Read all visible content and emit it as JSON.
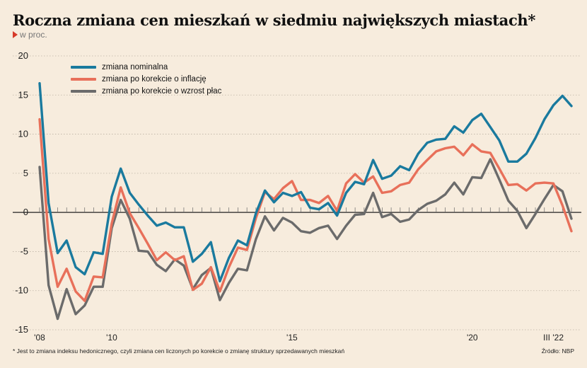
{
  "title": "Roczna zmiana cen mieszkań w siedmiu największych miastach*",
  "subtitle": "w proc.",
  "footnote": "* Jest to zmiana indeksu hedonicznego, czyli zmiana cen liczonych po korekcie o zmianę struktury sprzedawanych mieszkań",
  "source": "Źródło: NBP",
  "colors": {
    "nominal": "#1a7a9e",
    "inflation": "#e8705a",
    "wages": "#6b6b6b",
    "background": "#f7ecdd",
    "accent": "#d63a2a"
  },
  "chart_data": {
    "type": "line",
    "ylim": [
      -15,
      20
    ],
    "yticks": [
      20,
      15,
      10,
      5,
      0,
      -5,
      -10,
      -15
    ],
    "xticks": [
      {
        "label": "'08",
        "x": 0
      },
      {
        "label": "'10",
        "x": 8
      },
      {
        "label": "'15",
        "x": 28
      },
      {
        "label": "'20",
        "x": 48
      },
      {
        "label": "III '22",
        "x": 57
      }
    ],
    "grid": true,
    "legend_position": "top-left",
    "series": [
      {
        "name": "zmiana nominalna",
        "color": "#1a7a9e",
        "values": [
          16.5,
          1.2,
          -5.2,
          -3.6,
          -7.0,
          -7.9,
          -5.1,
          -5.3,
          2.0,
          5.6,
          2.5,
          1.0,
          -0.4,
          -1.7,
          -1.3,
          -1.9,
          -1.9,
          -6.3,
          -5.3,
          -3.8,
          -8.8,
          -5.8,
          -3.6,
          -4.2,
          -0.1,
          2.8,
          1.3,
          2.5,
          2.1,
          2.6,
          0.6,
          0.4,
          1.2,
          -0.4,
          2.5,
          3.9,
          3.6,
          6.7,
          4.3,
          4.7,
          5.9,
          5.4,
          7.5,
          8.9,
          9.3,
          9.4,
          11.0,
          10.2,
          11.8,
          12.6,
          10.9,
          9.2,
          6.5,
          6.5,
          7.5,
          9.5,
          11.9,
          13.7,
          14.9,
          13.6
        ]
      },
      {
        "name": "zmiana po korekcie o inflację",
        "color": "#e8705a",
        "values": [
          11.9,
          -3.4,
          -9.5,
          -7.2,
          -10.1,
          -11.3,
          -8.2,
          -8.3,
          -1.4,
          3.2,
          -0.1,
          -2.0,
          -4.0,
          -6.1,
          -5.1,
          -6.1,
          -5.6,
          -9.9,
          -9.1,
          -7.0,
          -10.1,
          -7.0,
          -4.5,
          -4.8,
          -0.7,
          2.6,
          1.7,
          3.1,
          4.0,
          1.6,
          1.6,
          1.2,
          2.1,
          0.2,
          3.7,
          4.9,
          3.8,
          4.6,
          2.5,
          2.7,
          3.5,
          3.8,
          5.5,
          6.7,
          7.8,
          8.2,
          8.4,
          7.3,
          8.7,
          7.8,
          7.6,
          5.6,
          3.5,
          3.6,
          2.8,
          3.7,
          3.8,
          3.7,
          0.9,
          -2.4
        ]
      },
      {
        "name": "zmiana po korekcie o wzrost płac",
        "color": "#6b6b6b",
        "values": [
          5.8,
          -9.3,
          -13.6,
          -9.8,
          -13.0,
          -11.9,
          -9.5,
          -9.5,
          -2.0,
          1.6,
          -0.8,
          -4.9,
          -5.0,
          -6.7,
          -7.5,
          -6.0,
          -6.8,
          -9.8,
          -8.0,
          -7.1,
          -11.2,
          -9.0,
          -7.2,
          -7.4,
          -3.4,
          -0.5,
          -2.3,
          -0.7,
          -1.3,
          -2.4,
          -2.6,
          -2.0,
          -1.7,
          -3.4,
          -1.7,
          -0.3,
          -0.2,
          2.5,
          -0.6,
          -0.2,
          -1.2,
          -0.9,
          0.3,
          1.1,
          1.5,
          2.3,
          3.8,
          2.3,
          4.5,
          4.4,
          6.8,
          4.2,
          1.5,
          0.2,
          -2.0,
          -0.2,
          1.7,
          3.5,
          2.7,
          -0.8
        ]
      }
    ]
  }
}
